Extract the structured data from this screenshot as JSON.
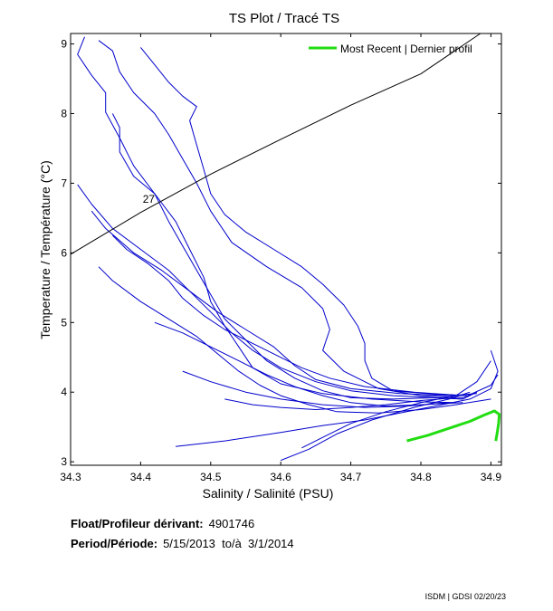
{
  "chart_data": {
    "type": "line",
    "title": "TS Plot / Tracé TS",
    "xlabel": "Salinity / Salinité (PSU)",
    "ylabel": "Temperature / Température (°C)",
    "xlim": [
      34.3,
      34.915
    ],
    "ylim": [
      2.95,
      9.15
    ],
    "xticks": [
      "34.3",
      "34.4",
      "34.5",
      "34.6",
      "34.7",
      "34.8",
      "34.9"
    ],
    "xtick_values": [
      34.3,
      34.4,
      34.5,
      34.6,
      34.7,
      34.8,
      34.9
    ],
    "yticks": [
      "3",
      "4",
      "5",
      "6",
      "7",
      "8",
      "9"
    ],
    "ytick_values": [
      3,
      4,
      5,
      6,
      7,
      8,
      9
    ],
    "legend": {
      "label": "Most Recent | Dernier profil",
      "placement": "top-right"
    },
    "density_line": {
      "label": "27",
      "points": [
        [
          34.3,
          5.98
        ],
        [
          34.4,
          6.58
        ],
        [
          34.5,
          7.13
        ],
        [
          34.6,
          7.63
        ],
        [
          34.7,
          8.12
        ],
        [
          34.8,
          8.57
        ],
        [
          34.885,
          9.15
        ]
      ]
    },
    "series": [
      {
        "name": "profiles",
        "color": "#0000cc",
        "profiles": [
          [
            [
              34.32,
              9.1
            ],
            [
              34.31,
              8.85
            ],
            [
              34.33,
              8.55
            ],
            [
              34.35,
              8.3
            ],
            [
              34.35,
              8.02
            ],
            [
              34.37,
              7.65
            ],
            [
              34.39,
              7.25
            ],
            [
              34.42,
              6.85
            ],
            [
              34.44,
              6.45
            ],
            [
              34.46,
              6.1
            ],
            [
              34.48,
              5.75
            ],
            [
              34.5,
              5.4
            ],
            [
              34.52,
              5.05
            ],
            [
              34.55,
              4.75
            ],
            [
              34.58,
              4.45
            ],
            [
              34.62,
              4.2
            ],
            [
              34.66,
              4.02
            ],
            [
              34.7,
              3.92
            ],
            [
              34.76,
              3.9
            ],
            [
              34.82,
              3.92
            ],
            [
              34.86,
              3.9
            ],
            [
              34.88,
              4.0
            ]
          ],
          [
            [
              34.34,
              9.05
            ],
            [
              34.36,
              8.9
            ],
            [
              34.37,
              8.6
            ],
            [
              34.39,
              8.3
            ],
            [
              34.42,
              8.0
            ],
            [
              34.44,
              7.7
            ],
            [
              34.46,
              7.35
            ],
            [
              34.48,
              7.0
            ],
            [
              34.5,
              6.6
            ],
            [
              34.53,
              6.15
            ],
            [
              34.58,
              5.8
            ],
            [
              34.63,
              5.5
            ],
            [
              34.66,
              5.2
            ],
            [
              34.67,
              4.9
            ],
            [
              34.66,
              4.6
            ],
            [
              34.69,
              4.3
            ],
            [
              34.74,
              4.05
            ],
            [
              34.8,
              3.95
            ],
            [
              34.86,
              3.92
            ],
            [
              34.9,
              4.1
            ],
            [
              34.91,
              4.25
            ]
          ],
          [
            [
              34.36,
              8.0
            ],
            [
              34.37,
              7.8
            ],
            [
              34.37,
              7.45
            ],
            [
              34.39,
              7.1
            ],
            [
              34.42,
              6.85
            ],
            [
              34.45,
              6.45
            ],
            [
              34.47,
              6.05
            ],
            [
              34.49,
              5.65
            ],
            [
              34.5,
              5.3
            ],
            [
              34.52,
              4.95
            ],
            [
              34.54,
              4.65
            ],
            [
              34.56,
              4.35
            ],
            [
              34.6,
              4.12
            ],
            [
              34.66,
              3.98
            ],
            [
              34.73,
              3.9
            ],
            [
              34.8,
              3.86
            ],
            [
              34.85,
              3.85
            ]
          ],
          [
            [
              34.31,
              6.98
            ],
            [
              34.33,
              6.7
            ],
            [
              34.36,
              6.35
            ],
            [
              34.4,
              6.05
            ],
            [
              34.44,
              5.75
            ],
            [
              34.47,
              5.45
            ],
            [
              34.5,
              5.15
            ],
            [
              34.53,
              4.85
            ],
            [
              34.56,
              4.6
            ],
            [
              34.6,
              4.35
            ],
            [
              34.65,
              4.15
            ],
            [
              34.7,
              4.02
            ],
            [
              34.76,
              3.95
            ],
            [
              34.82,
              3.92
            ],
            [
              34.86,
              3.9
            ]
          ],
          [
            [
              34.33,
              6.6
            ],
            [
              34.35,
              6.35
            ],
            [
              34.39,
              6.0
            ],
            [
              34.43,
              5.75
            ],
            [
              34.47,
              5.45
            ],
            [
              34.51,
              5.15
            ],
            [
              34.55,
              4.9
            ],
            [
              34.59,
              4.65
            ],
            [
              34.62,
              4.38
            ],
            [
              34.65,
              4.18
            ],
            [
              34.7,
              4.05
            ],
            [
              34.77,
              3.98
            ],
            [
              34.84,
              3.95
            ],
            [
              34.88,
              3.98
            ]
          ],
          [
            [
              34.4,
              8.95
            ],
            [
              34.42,
              8.7
            ],
            [
              34.44,
              8.45
            ],
            [
              34.46,
              8.25
            ],
            [
              34.48,
              8.1
            ],
            [
              34.47,
              7.9
            ],
            [
              34.48,
              7.55
            ],
            [
              34.49,
              7.2
            ],
            [
              34.5,
              6.85
            ],
            [
              34.52,
              6.55
            ],
            [
              34.55,
              6.3
            ],
            [
              34.59,
              6.05
            ],
            [
              34.63,
              5.8
            ],
            [
              34.66,
              5.55
            ],
            [
              34.69,
              5.25
            ],
            [
              34.71,
              4.95
            ],
            [
              34.72,
              4.7
            ],
            [
              34.72,
              4.45
            ],
            [
              34.73,
              4.2
            ],
            [
              34.76,
              4.02
            ],
            [
              34.82,
              3.97
            ],
            [
              34.87,
              3.95
            ]
          ],
          [
            [
              34.34,
              5.8
            ],
            [
              34.36,
              5.6
            ],
            [
              34.4,
              5.3
            ],
            [
              34.44,
              5.05
            ],
            [
              34.48,
              4.8
            ],
            [
              34.51,
              4.55
            ],
            [
              34.54,
              4.3
            ],
            [
              34.57,
              4.1
            ],
            [
              34.6,
              3.95
            ],
            [
              34.64,
              3.82
            ],
            [
              34.68,
              3.72
            ],
            [
              34.74,
              3.7
            ],
            [
              34.8,
              3.75
            ],
            [
              34.85,
              3.82
            ],
            [
              34.9,
              3.9
            ]
          ],
          [
            [
              34.42,
              5.0
            ],
            [
              34.46,
              4.85
            ],
            [
              34.5,
              4.65
            ],
            [
              34.54,
              4.45
            ],
            [
              34.58,
              4.25
            ],
            [
              34.62,
              4.08
            ],
            [
              34.66,
              3.95
            ],
            [
              34.7,
              3.85
            ],
            [
              34.75,
              3.8
            ],
            [
              34.8,
              3.82
            ],
            [
              34.86,
              3.85
            ]
          ],
          [
            [
              34.52,
              3.9
            ],
            [
              34.56,
              3.82
            ],
            [
              34.6,
              3.78
            ],
            [
              34.65,
              3.75
            ],
            [
              34.7,
              3.78
            ],
            [
              34.75,
              3.82
            ],
            [
              34.8,
              3.88
            ],
            [
              34.85,
              3.92
            ]
          ],
          [
            [
              34.46,
              4.3
            ],
            [
              34.5,
              4.15
            ],
            [
              34.55,
              4.0
            ],
            [
              34.6,
              3.9
            ],
            [
              34.66,
              3.82
            ],
            [
              34.72,
              3.78
            ],
            [
              34.78,
              3.8
            ],
            [
              34.84,
              3.85
            ]
          ],
          [
            [
              34.45,
              3.22
            ],
            [
              34.52,
              3.3
            ],
            [
              34.6,
              3.42
            ],
            [
              34.66,
              3.52
            ],
            [
              34.72,
              3.6
            ],
            [
              34.78,
              3.72
            ],
            [
              34.83,
              3.82
            ],
            [
              34.87,
              3.9
            ],
            [
              34.9,
              4.05
            ],
            [
              34.91,
              4.3
            ],
            [
              34.9,
              4.6
            ]
          ],
          [
            [
              34.63,
              3.2
            ],
            [
              34.66,
              3.35
            ],
            [
              34.7,
              3.55
            ],
            [
              34.75,
              3.72
            ],
            [
              34.8,
              3.85
            ],
            [
              34.85,
              3.95
            ],
            [
              34.88,
              4.15
            ],
            [
              34.9,
              4.45
            ]
          ],
          [
            [
              34.6,
              3.02
            ],
            [
              34.64,
              3.18
            ],
            [
              34.68,
              3.4
            ],
            [
              34.73,
              3.6
            ],
            [
              34.79,
              3.78
            ],
            [
              34.84,
              3.9
            ],
            [
              34.87,
              4.0
            ]
          ],
          [
            [
              34.36,
              6.25
            ],
            [
              34.38,
              6.05
            ],
            [
              34.41,
              5.85
            ],
            [
              34.44,
              5.6
            ],
            [
              34.46,
              5.35
            ],
            [
              34.49,
              5.1
            ],
            [
              34.52,
              4.9
            ],
            [
              34.56,
              4.7
            ],
            [
              34.6,
              4.5
            ],
            [
              34.63,
              4.35
            ],
            [
              34.67,
              4.2
            ],
            [
              34.72,
              4.08
            ],
            [
              34.79,
              4.0
            ],
            [
              34.86,
              3.95
            ]
          ]
        ]
      },
      {
        "name": "Most Recent | Dernier profil",
        "color": "#22dd11",
        "points": [
          [
            34.78,
            3.3
          ],
          [
            34.81,
            3.38
          ],
          [
            34.84,
            3.48
          ],
          [
            34.87,
            3.58
          ],
          [
            34.89,
            3.67
          ],
          [
            34.905,
            3.73
          ],
          [
            34.912,
            3.68
          ],
          [
            34.911,
            3.55
          ],
          [
            34.909,
            3.42
          ],
          [
            34.907,
            3.3
          ]
        ]
      }
    ]
  },
  "meta": {
    "float_label": "Float/Profileur dérivant:",
    "float_value": "4901746",
    "period_label": "Period/Période:",
    "period_value": "5/15/2013  to/à  3/1/2014",
    "credit": "ISDM | GDSI  02/20/23"
  }
}
